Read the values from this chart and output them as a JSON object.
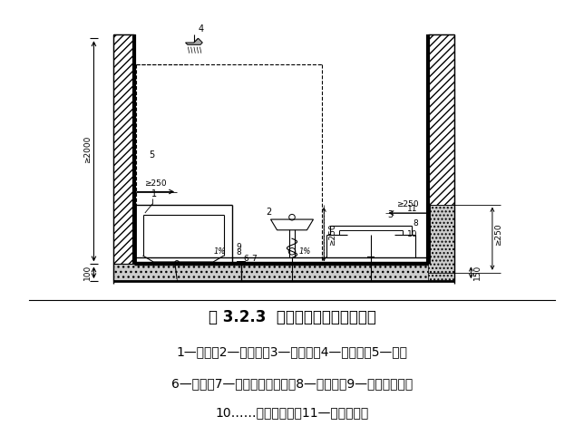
{
  "title": "图 3.2.3  厕浴间墙面防水高度示意",
  "legend_line1": "1—浴缸；2—洗手池；3—蹲便器；4—喷淋头；5—浴帘",
  "legend_line2": "6—地漏；7—现浇混凝土楼板；8—防水层；9—地面饰面层；",
  "legend_line3": "10……混凝土泛水；11—墙面饰面层",
  "bg_color": "#ffffff",
  "line_color": "#000000",
  "title_fontsize": 12,
  "legend_fontsize": 10
}
